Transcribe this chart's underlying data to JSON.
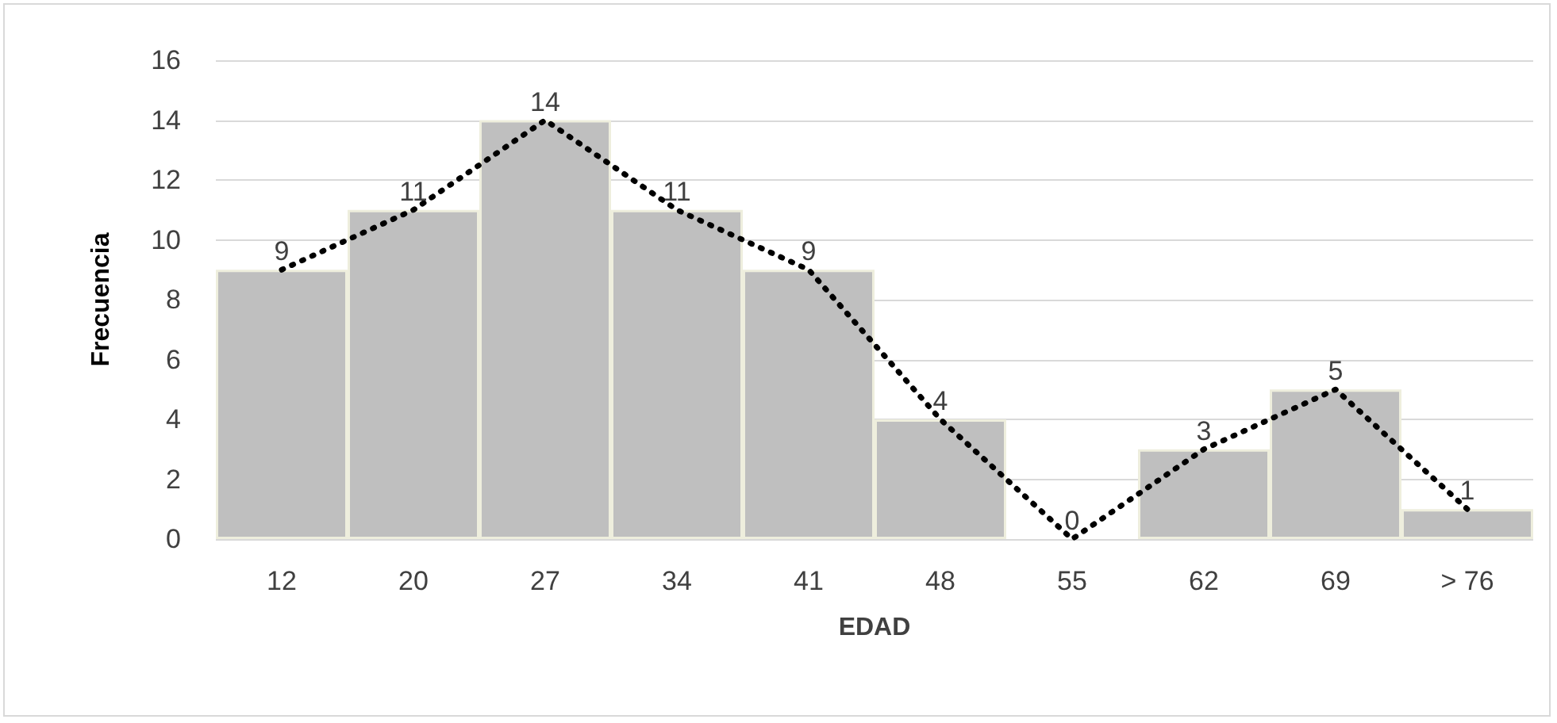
{
  "chart_data": {
    "type": "bar",
    "xlabel": "EDAD",
    "ylabel": "Frecuencia",
    "categories": [
      "12",
      "20",
      "27",
      "34",
      "41",
      "48",
      "55",
      "62",
      "69",
      "> 76"
    ],
    "series": [
      {
        "color": "#bfbfbf",
        "values": [
          9,
          11,
          14,
          11,
          9,
          4,
          0,
          3,
          5,
          1
        ]
      },
      {
        "type": "line",
        "color": "#000000",
        "line_style": "dotted",
        "marker": "none",
        "values": [
          9,
          11,
          14,
          11,
          9,
          4,
          0,
          3,
          5,
          1
        ],
        "value_labels": [
          "9",
          "11",
          "14",
          "11",
          "9",
          "4",
          "0",
          "3",
          "5",
          "1"
        ]
      }
    ],
    "ylim": [
      0,
      16
    ],
    "yticks": [
      0,
      2,
      4,
      6,
      8,
      10,
      12,
      14,
      16
    ],
    "grid": "y"
  }
}
